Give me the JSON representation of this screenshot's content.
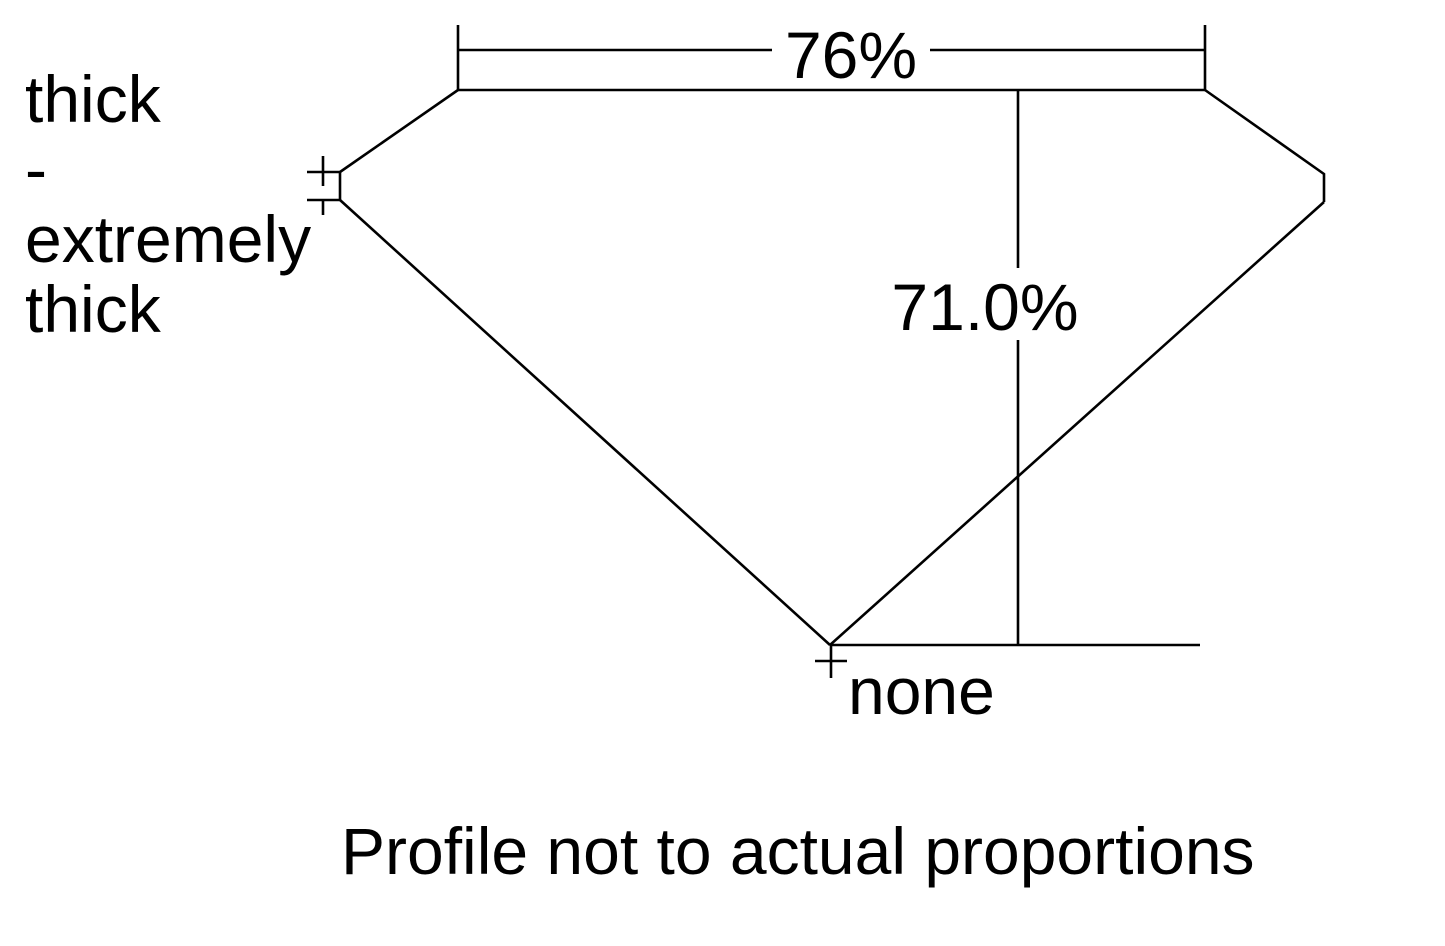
{
  "diagram": {
    "table_width_label": "76%",
    "total_depth_label": "71.0%",
    "girdle_label_lines": [
      "thick",
      "-",
      "extremely",
      "thick"
    ],
    "culet_label": "none",
    "caption": "Profile not to actual proportions"
  }
}
